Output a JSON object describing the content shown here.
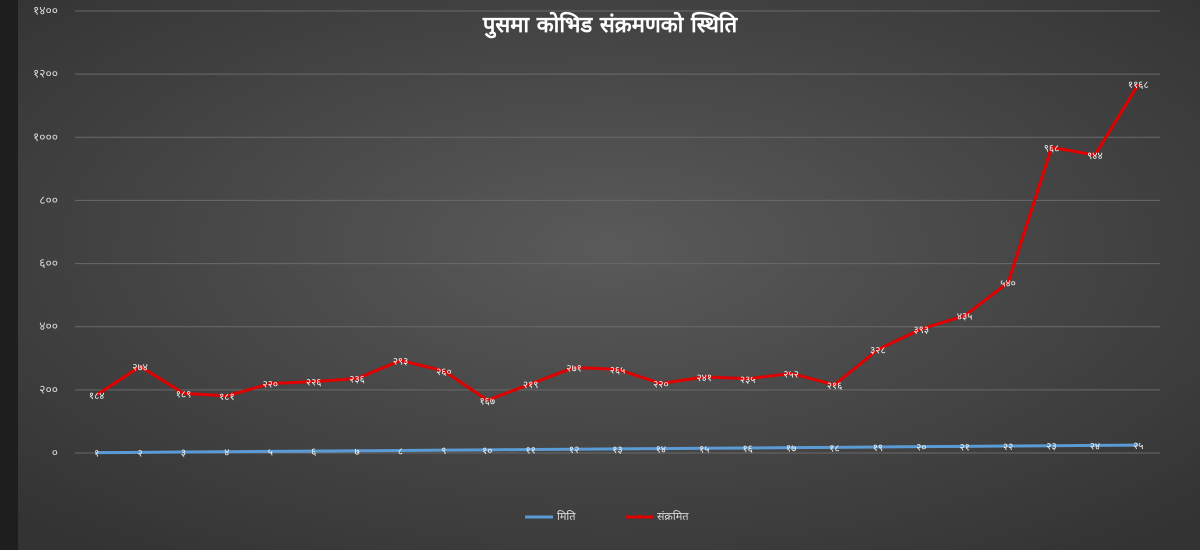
{
  "chart_data": {
    "type": "line",
    "title": "पुसमा कोभिड संक्रमणको स्थिति",
    "ylim": [
      0,
      1400
    ],
    "yticks": [
      {
        "value": 0,
        "label": "०"
      },
      {
        "value": 200,
        "label": "२००"
      },
      {
        "value": 400,
        "label": "४००"
      },
      {
        "value": 600,
        "label": "६००"
      },
      {
        "value": 800,
        "label": "८००"
      },
      {
        "value": 1000,
        "label": "१०००"
      },
      {
        "value": 1200,
        "label": "१२००"
      },
      {
        "value": 1400,
        "label": "१४००"
      }
    ],
    "grid": true,
    "legend": "bottom",
    "series": [
      {
        "name": "मिति",
        "color": "#5b9bd5",
        "values": [
          1,
          2,
          3,
          4,
          5,
          6,
          7,
          8,
          9,
          10,
          11,
          12,
          13,
          14,
          15,
          16,
          17,
          18,
          19,
          20,
          21,
          22,
          23,
          24,
          25
        ],
        "value_labels": [
          "१",
          "२",
          "३",
          "४",
          "५",
          "६",
          "७",
          "८",
          "९",
          "१०",
          "११",
          "१२",
          "१३",
          "१४",
          "१५",
          "१६",
          "१७",
          "१८",
          "१९",
          "२०",
          "२१",
          "२२",
          "२३",
          "२४",
          "२५"
        ]
      },
      {
        "name": "संक्रमित",
        "color": "#e00000",
        "values": [
          184,
          274,
          189,
          181,
          220,
          226,
          236,
          293,
          260,
          167,
          219,
          271,
          265,
          220,
          241,
          235,
          252,
          216,
          328,
          393,
          435,
          540,
          968,
          944,
          1168
        ],
        "value_labels": [
          "१८४",
          "२७४",
          "१८९",
          "१८१",
          "२२०",
          "२२६",
          "२३६",
          "२९३",
          "२६०",
          "१६७",
          "२१९",
          "२७१",
          "२६५",
          "२२०",
          "२४१",
          "२३५",
          "२५२",
          "२१६",
          "३२८",
          "३९३",
          "४३५",
          "५४०",
          "९६८",
          "९४४",
          "११६८"
        ]
      }
    ]
  }
}
